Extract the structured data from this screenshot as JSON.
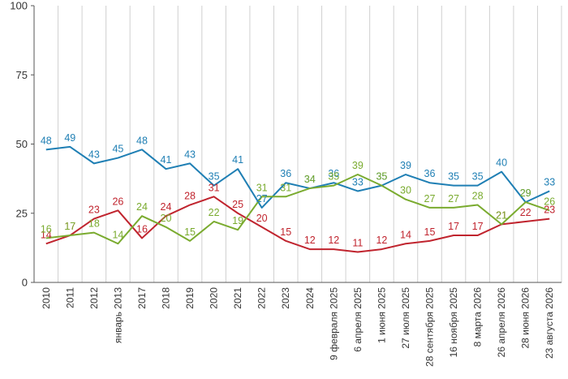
{
  "chart_data": {
    "type": "line",
    "title": "",
    "xlabel": "",
    "ylabel": "",
    "ylim": [
      0,
      100
    ],
    "yticks": [
      0,
      25,
      50,
      75,
      100
    ],
    "grid": "vertical",
    "legend": "none",
    "categories": [
      "2010",
      "2011",
      "2012",
      "январь 2013",
      "2017",
      "2018",
      "2019",
      "2020",
      "2021",
      "2022",
      "2023",
      "2024",
      "9 февраля 2025",
      "6 апреля 2025",
      "1 июня 2025",
      "27 июля 2025",
      "28 сентября 2025",
      "16 ноября 2025",
      "8 марта 2026",
      "26 апреля 2026",
      "28 июня 2026",
      "23 августа 2026"
    ],
    "series": [
      {
        "color": "#1f7fb4",
        "values": [
          48,
          49,
          43,
          45,
          48,
          41,
          43,
          35,
          41,
          27,
          36,
          34,
          36,
          33,
          35,
          39,
          36,
          35,
          35,
          40,
          29,
          33
        ]
      },
      {
        "color": "#c0242e",
        "values": [
          14,
          17,
          23,
          26,
          16,
          24,
          28,
          31,
          25,
          20,
          15,
          12,
          12,
          11,
          12,
          14,
          15,
          17,
          17,
          21,
          22,
          23
        ]
      },
      {
        "color": "#7aab2f",
        "values": [
          16,
          17,
          18,
          14,
          24,
          20,
          15,
          22,
          19,
          31,
          31,
          34,
          35,
          39,
          35,
          30,
          27,
          27,
          28,
          21,
          29,
          26
        ]
      }
    ]
  }
}
